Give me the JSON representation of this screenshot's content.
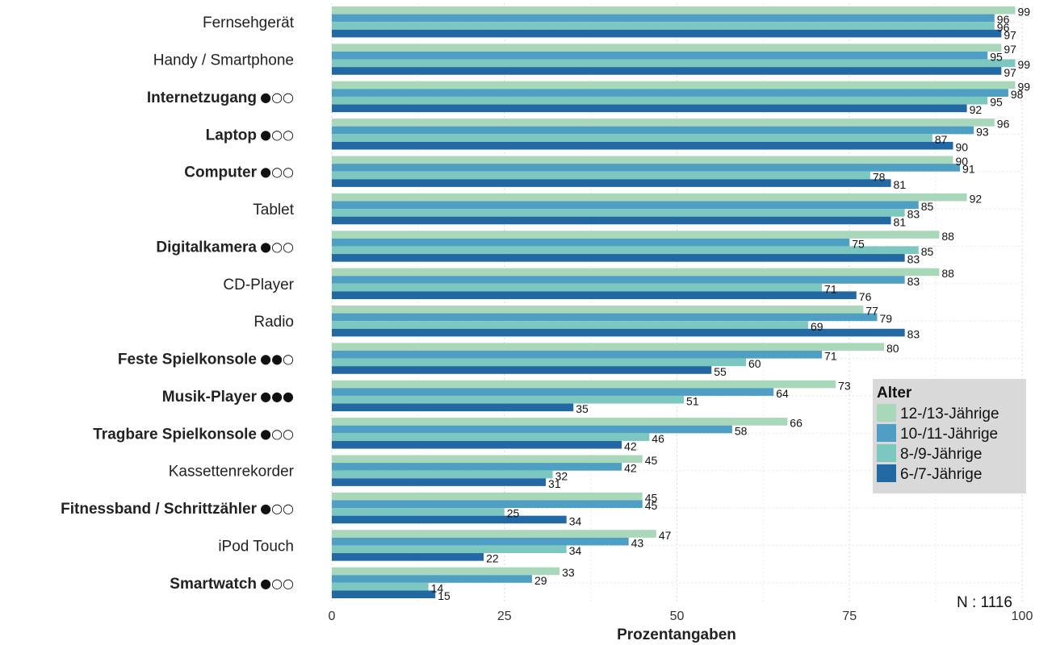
{
  "chart_data": {
    "type": "bar",
    "orientation": "horizontal",
    "xlabel": "Prozentangaben",
    "xlim": [
      0,
      100
    ],
    "xticks": [
      0,
      25,
      50,
      75,
      100
    ],
    "grid": true,
    "legend": {
      "title": "Alter",
      "position": "bottom-right"
    },
    "note": "N : 1116",
    "categories": [
      "Fernsehgerät",
      "Handy / Smartphone",
      "Internetzugang",
      "Laptop",
      "Computer",
      "Tablet",
      "Digitalkamera",
      "CD-Player",
      "Radio",
      "Feste Spielkonsole",
      "Musik-Player",
      "Tragbare Spielkonsole",
      "Kassettenrekorder",
      "Fitnessband / Schrittzähler",
      "iPod Touch",
      "Smartwatch"
    ],
    "category_bold": [
      false,
      false,
      true,
      true,
      true,
      false,
      true,
      false,
      false,
      true,
      true,
      true,
      false,
      true,
      false,
      true
    ],
    "category_dots": [
      "",
      "",
      "●○○",
      "●○○",
      "●○○",
      "",
      "●○○",
      "",
      "",
      "●●○",
      "●●●",
      "●○○",
      "",
      "●○○",
      "",
      "●○○"
    ],
    "series": [
      {
        "name": "12-/13-Jährige",
        "color": "#a8d8b9",
        "values": [
          99,
          97,
          99,
          96,
          90,
          92,
          88,
          88,
          77,
          80,
          73,
          66,
          45,
          45,
          47,
          33
        ]
      },
      {
        "name": "10-/11-Jährige",
        "color": "#4f9fc4",
        "values": [
          96,
          95,
          98,
          93,
          91,
          85,
          75,
          83,
          79,
          71,
          64,
          58,
          42,
          45,
          43,
          29
        ]
      },
      {
        "name": "8-/9-Jährige",
        "color": "#7cc8c0",
        "values": [
          96,
          99,
          95,
          87,
          78,
          83,
          85,
          71,
          69,
          60,
          51,
          46,
          32,
          25,
          34,
          14
        ]
      },
      {
        "name": "6-/7-Jährige",
        "color": "#2269a3",
        "values": [
          97,
          97,
          92,
          90,
          81,
          81,
          83,
          76,
          83,
          55,
          35,
          42,
          31,
          34,
          22,
          15
        ]
      }
    ]
  }
}
